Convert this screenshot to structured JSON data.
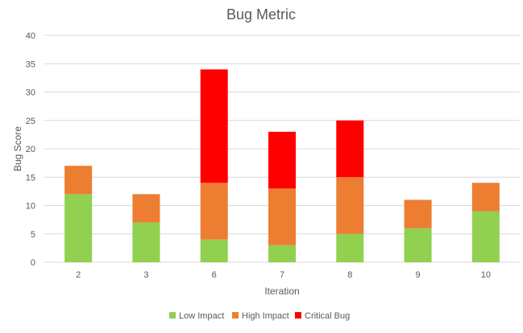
{
  "chart_data": {
    "type": "bar",
    "stacked": true,
    "title": "Bug Metric",
    "xlabel": "Iteration",
    "ylabel": "Bug Score",
    "categories": [
      "2",
      "3",
      "6",
      "7",
      "8",
      "9",
      "10"
    ],
    "series": [
      {
        "name": "Low Impact",
        "color": "#92D050",
        "values": [
          12,
          7,
          4,
          3,
          5,
          6,
          9
        ]
      },
      {
        "name": "High Impact",
        "color": "#ED7D31",
        "values": [
          5,
          5,
          10,
          10,
          10,
          5,
          5
        ]
      },
      {
        "name": "Critical Bug",
        "color": "#FF0000",
        "values": [
          0,
          0,
          20,
          10,
          10,
          0,
          0
        ]
      }
    ],
    "ylim": [
      0,
      40
    ],
    "yticks": [
      0,
      5,
      10,
      15,
      20,
      25,
      30,
      35,
      40
    ],
    "grid": true,
    "legend": "bottom"
  }
}
